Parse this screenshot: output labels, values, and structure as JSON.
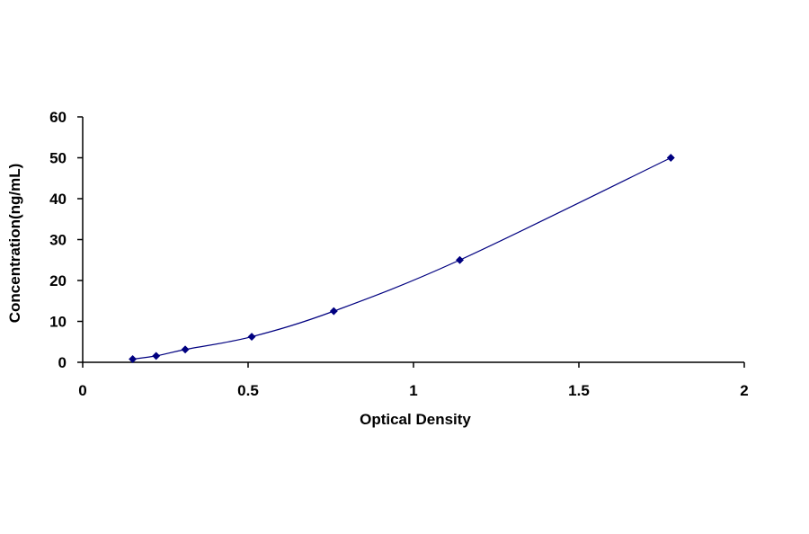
{
  "chart_data": {
    "type": "scatter",
    "title": "",
    "xlabel": "Optical Density",
    "ylabel": "Concentration(ng/mL)",
    "xlim": [
      0,
      2
    ],
    "ylim": [
      0,
      60
    ],
    "x_ticks": [
      0,
      0.5,
      1,
      1.5,
      2
    ],
    "x_tick_labels": [
      "0",
      "0.5",
      "1",
      "1.5",
      "2"
    ],
    "y_ticks": [
      0,
      10,
      20,
      30,
      40,
      50,
      60
    ],
    "y_tick_labels": [
      "0",
      "10",
      "20",
      "30",
      "40",
      "50",
      "60"
    ],
    "grid": false,
    "legend": "none",
    "series": [
      {
        "x": [
          0.151,
          0.222,
          0.31,
          0.511,
          0.759,
          1.14,
          1.778
        ],
        "y": [
          0.78,
          1.56,
          3.13,
          6.25,
          12.5,
          25,
          50
        ],
        "marker": "diamond",
        "trendline": "polynomial",
        "color": "#000080"
      }
    ]
  }
}
